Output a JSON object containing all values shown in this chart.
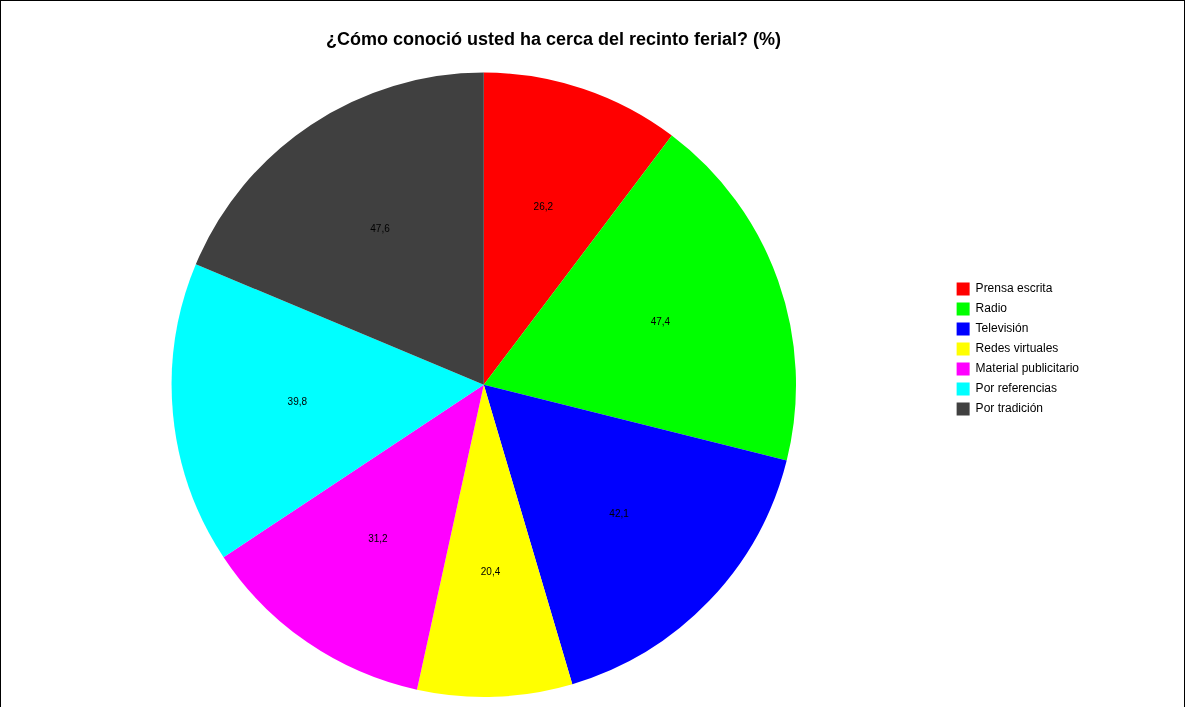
{
  "chart_data": {
    "type": "pie",
    "title": "¿Cómo conoció usted ha cerca del recinto ferial? (%)",
    "categories": [
      "Prensa escrita",
      "Radio",
      "Televisión",
      "Redes virtuales",
      "Material publicitario",
      "Por referencias",
      "Por tradición"
    ],
    "values": [
      26.2,
      47.4,
      42.1,
      20.4,
      31.2,
      39.8,
      47.6
    ],
    "colors": [
      "#ff0000",
      "#00ff00",
      "#0000ff",
      "#ffff00",
      "#ff00ff",
      "#00ffff",
      "#404040"
    ],
    "value_labels": [
      "26,2",
      "47,4",
      "42,1",
      "20,4",
      "31,2",
      "39,8",
      "47,6"
    ],
    "legend": "right"
  }
}
